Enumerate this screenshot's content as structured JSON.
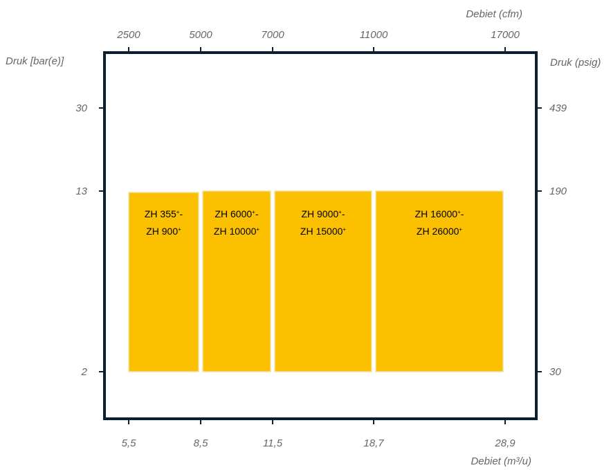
{
  "chart_data": {
    "type": "bar",
    "title": "",
    "x_bottom": {
      "label": "Debiet (m³/u)",
      "ticks": [
        "5,5",
        "8,5",
        "11,5",
        "18,7",
        "28,9"
      ]
    },
    "x_top": {
      "label": "Debiet (cfm)",
      "ticks": [
        "2500",
        "5000",
        "7000",
        "11000",
        "17000"
      ]
    },
    "y_left": {
      "label": "Druk [bar(e)]",
      "ticks": [
        "30",
        "13",
        "2"
      ]
    },
    "y_right": {
      "label": "Druk (psig)",
      "ticks": [
        "439",
        "190",
        "30"
      ]
    },
    "series": [
      {
        "values": [
          {
            "x_from": 5.5,
            "x_to": 8.5,
            "y_from": 2,
            "y_to": 13,
            "line1": "ZH 355",
            "sup1": "+",
            "dash1": "-",
            "line2": "ZH 900",
            "sup2": "+"
          },
          {
            "x_from": 8.5,
            "x_to": 11.5,
            "y_from": 2,
            "y_to": 13,
            "line1": "ZH 6000",
            "sup1": "+",
            "dash1": "-",
            "line2": "ZH 10000",
            "sup2": "+"
          },
          {
            "x_from": 11.5,
            "x_to": 18.7,
            "y_from": 2,
            "y_to": 13,
            "line1": "ZH 9000",
            "sup1": "+",
            "dash1": "-",
            "line2": "ZH 15000",
            "sup2": "+"
          },
          {
            "x_from": 18.7,
            "x_to": 28.9,
            "y_from": 2,
            "y_to": 13,
            "line1": "ZH 16000",
            "sup1": "+",
            "dash1": "-",
            "line2": "ZH 26000",
            "sup2": "+"
          }
        ]
      }
    ],
    "colors": {
      "bar": "#FBC000",
      "frame": "#0B1F33",
      "tick": "#0B1F33"
    },
    "grid": false,
    "legend": "none"
  }
}
